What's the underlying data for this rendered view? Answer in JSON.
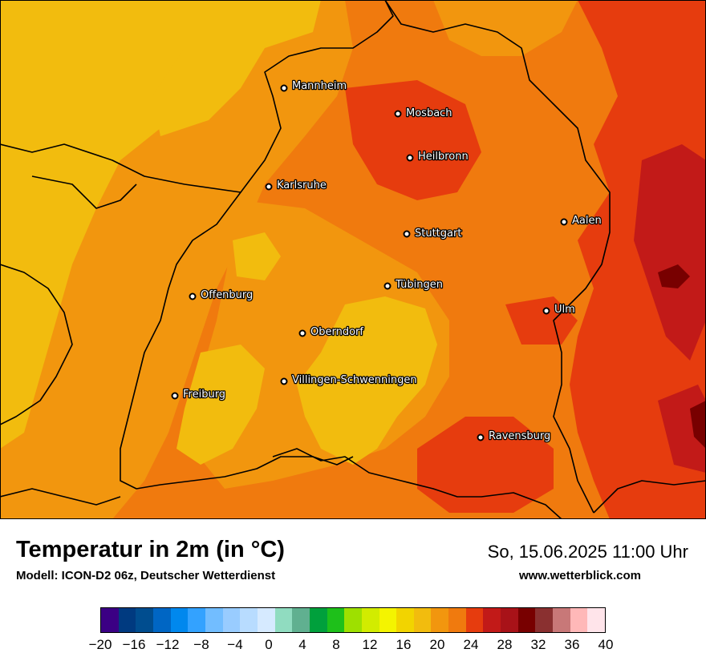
{
  "title": "Temperatur in 2m (in °C)",
  "model": "Modell: ICON-D2 06z, Deutscher Wetterdienst",
  "datetime": "So, 15.06.2025 11:00 Uhr",
  "website": "www.wetterblick.com",
  "cities": [
    {
      "name": "Mannheim"
    },
    {
      "name": "Mosbach"
    },
    {
      "name": "Heilbronn"
    },
    {
      "name": "Karlsruhe"
    },
    {
      "name": "Aalen"
    },
    {
      "name": "Stuttgart"
    },
    {
      "name": "Tübingen"
    },
    {
      "name": "Offenburg"
    },
    {
      "name": "Ulm"
    },
    {
      "name": "Oberndorf"
    },
    {
      "name": "Villingen-Schwenningen"
    },
    {
      "name": "Freiburg"
    },
    {
      "name": "Ravensburg"
    }
  ],
  "legend": {
    "ticks": [
      "−20",
      "−16",
      "−12",
      "−8",
      "−4",
      "0",
      "4",
      "8",
      "12",
      "16",
      "20",
      "24",
      "28",
      "32",
      "36",
      "40"
    ],
    "colors": [
      "#3b0084",
      "#003a80",
      "#004d8f",
      "#0066c4",
      "#0088ee",
      "#33a2ff",
      "#72bdff",
      "#99ccff",
      "#b8dcff",
      "#d6eaff",
      "#90dcc0",
      "#60b090",
      "#00a03c",
      "#1ec01a",
      "#9ee000",
      "#d2ec00",
      "#f4f400",
      "#f2d400",
      "#f2bc0e",
      "#f2960e",
      "#f07a0e",
      "#e63c0e",
      "#c21a18",
      "#a81218",
      "#780000",
      "#8a3030",
      "#c87878",
      "#ffb8b8",
      "#ffe4ea"
    ]
  },
  "colors": {
    "temp_20": "#f2bc0e",
    "temp_22": "#f2960e",
    "temp_24": "#f07a0e",
    "temp_26": "#e63c0e",
    "temp_28": "#c21a18",
    "temp_30": "#780000"
  }
}
